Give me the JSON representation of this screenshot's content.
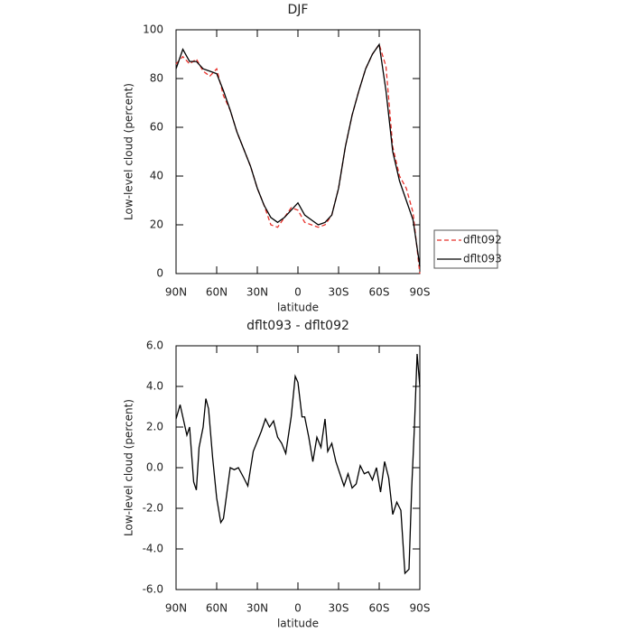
{
  "chart_data": [
    {
      "type": "line",
      "title": "DJF",
      "xlabel": "latitude",
      "ylabel": "Low-level cloud (percent)",
      "xlim": [
        90,
        -90
      ],
      "xticks": [
        {
          "value": 90,
          "label": "90N"
        },
        {
          "value": 60,
          "label": "60N"
        },
        {
          "value": 30,
          "label": "30N"
        },
        0,
        {
          "value": -30,
          "label": "30S"
        },
        {
          "value": -60,
          "label": "60S"
        },
        {
          "value": -90,
          "label": "90S"
        }
      ],
      "ylim": [
        0,
        100
      ],
      "yticks": [
        0,
        20,
        40,
        60,
        80,
        100
      ],
      "legend": "outside-right",
      "x": [
        90,
        85,
        80,
        75,
        70,
        65,
        60,
        55,
        50,
        45,
        40,
        35,
        30,
        25,
        20,
        15,
        10,
        5,
        0,
        -5,
        -10,
        -15,
        -20,
        -25,
        -30,
        -35,
        -40,
        -45,
        -50,
        -55,
        -60,
        -65,
        -70,
        -75,
        -80,
        -85,
        -90
      ],
      "series": [
        {
          "name": "dflt092",
          "color": "#e8302a",
          "style": "dashed",
          "values": [
            86,
            89,
            86,
            88,
            83,
            81,
            84,
            73,
            67,
            58,
            51,
            44,
            35,
            28,
            20,
            19,
            23,
            27,
            26,
            21,
            20,
            19,
            20,
            24,
            35,
            52,
            65,
            75,
            84,
            90,
            94,
            85,
            52,
            40,
            35,
            25,
            0
          ]
        },
        {
          "name": "dflt093",
          "color": "#000000",
          "style": "solid",
          "values": [
            84,
            92,
            87,
            87,
            84,
            83,
            82,
            75,
            67,
            58,
            51,
            44,
            35,
            28,
            23,
            21,
            23,
            26,
            29,
            24,
            22,
            20,
            21,
            24,
            35,
            52,
            65,
            75,
            84,
            90,
            94,
            75,
            50,
            38,
            30,
            22,
            3
          ]
        }
      ]
    },
    {
      "type": "line",
      "title": "dflt093 - dflt092",
      "xlabel": "latitude",
      "ylabel": "Low-level cloud (percent)",
      "xlim": [
        90,
        -90
      ],
      "xticks": [
        {
          "value": 90,
          "label": "90N"
        },
        {
          "value": 60,
          "label": "60N"
        },
        {
          "value": 30,
          "label": "30N"
        },
        0,
        {
          "value": -30,
          "label": "30S"
        },
        {
          "value": -60,
          "label": "60S"
        },
        {
          "value": -90,
          "label": "90S"
        }
      ],
      "ylim": [
        -6,
        6
      ],
      "yticks": [
        {
          "value": -6,
          "label": "-6.0"
        },
        {
          "value": -4,
          "label": "-4.0"
        },
        {
          "value": -2,
          "label": "-2.0"
        },
        {
          "value": 0,
          "label": "0.0"
        },
        {
          "value": 2,
          "label": "2.0"
        },
        {
          "value": 4,
          "label": "4.0"
        },
        {
          "value": 6,
          "label": "6.0"
        }
      ],
      "x": [
        90,
        87,
        85,
        82,
        80,
        77,
        75,
        73,
        70,
        68,
        66,
        63,
        60,
        57,
        55,
        52,
        50,
        47,
        44,
        40,
        37,
        33,
        30,
        27,
        24,
        21,
        18,
        15,
        12,
        9,
        5,
        2,
        0,
        -3,
        -5,
        -8,
        -11,
        -14,
        -17,
        -20,
        -22,
        -25,
        -28,
        -31,
        -34,
        -37,
        -40,
        -43,
        -46,
        -49,
        -52,
        -55,
        -58,
        -61,
        -64,
        -67,
        -70,
        -73,
        -76,
        -79,
        -82,
        -84,
        -86,
        -88,
        -90
      ],
      "series": [
        {
          "color": "#000000",
          "style": "solid",
          "values": [
            2.4,
            3.1,
            2.5,
            1.6,
            2.0,
            -0.7,
            -1.1,
            1.0,
            2.0,
            3.4,
            2.9,
            0.5,
            -1.5,
            -2.7,
            -2.5,
            -1.0,
            0.0,
            -0.1,
            0.0,
            -0.5,
            -0.9,
            0.8,
            1.3,
            1.8,
            2.4,
            2.0,
            2.3,
            1.5,
            1.2,
            0.7,
            2.5,
            4.5,
            4.2,
            2.5,
            2.5,
            1.5,
            0.3,
            1.5,
            1.0,
            2.4,
            0.8,
            1.2,
            0.3,
            -0.3,
            -0.9,
            -0.3,
            -1.0,
            -0.8,
            0.1,
            -0.3,
            -0.2,
            -0.6,
            0.0,
            -1.2,
            0.3,
            -0.5,
            -2.3,
            -1.7,
            -2.1,
            -5.2,
            -5.0,
            -1.0,
            2.0,
            5.6,
            4.0
          ]
        }
      ]
    }
  ]
}
